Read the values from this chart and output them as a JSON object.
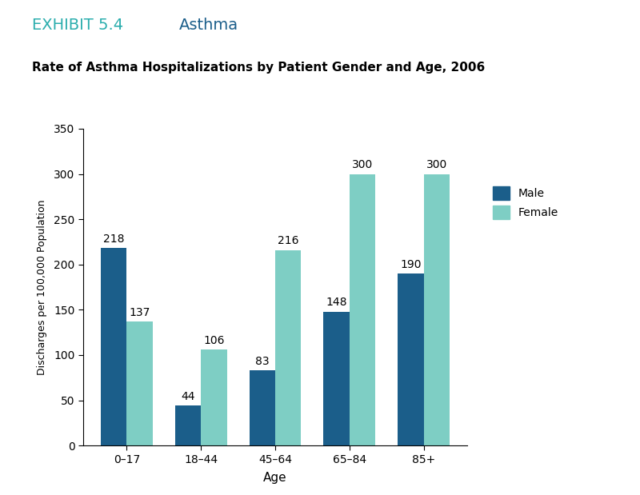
{
  "exhibit_label": "EXHIBIT 5.4",
  "exhibit_title": "Asthma",
  "chart_title": "Rate of Asthma Hospitalizations by Patient Gender and Age, 2006",
  "xlabel": "Age",
  "ylabel": "Discharges per 100,000 Population",
  "categories": [
    "0–17",
    "18–44",
    "45–64",
    "65–84",
    "85+"
  ],
  "male_values": [
    218,
    44,
    83,
    148,
    190
  ],
  "female_values": [
    137,
    106,
    216,
    300,
    300
  ],
  "male_color": "#1b5e8a",
  "female_color": "#7ecec4",
  "ylim": [
    0,
    350
  ],
  "yticks": [
    0,
    50,
    100,
    150,
    200,
    250,
    300,
    350
  ],
  "bar_width": 0.35,
  "legend_labels": [
    "Male",
    "Female"
  ],
  "exhibit_label_color": "#2aadad",
  "exhibit_title_color": "#1b5e8a",
  "chart_title_color": "#000000",
  "background_color": "#ffffff",
  "label_fontsize": 10,
  "chart_title_fontsize": 11,
  "exhibit_fontsize": 14,
  "axis_label_fontsize": 11
}
